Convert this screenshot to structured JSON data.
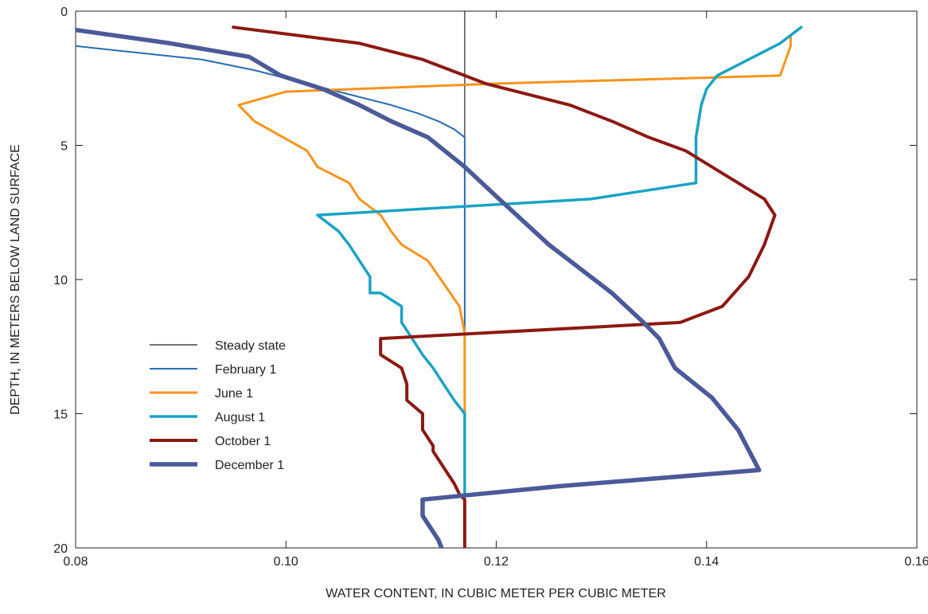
{
  "chart_data": {
    "type": "line",
    "xlabel": "WATER CONTENT, IN CUBIC METER PER CUBIC METER",
    "ylabel": "DEPTH, IN METERS BELOW LAND SURFACE",
    "xlim": [
      0.08,
      0.16
    ],
    "ylim": [
      0,
      20
    ],
    "y_inverted": true,
    "xticks": [
      "0.08",
      "0.10",
      "0.12",
      "0.14",
      "0.16"
    ],
    "yticks": [
      "0",
      "5",
      "10",
      "15",
      "20"
    ],
    "grid": false,
    "legend_position": "lower-left",
    "series": [
      {
        "name": "Steady state",
        "color": "#231f20",
        "x": [
          0.117,
          0.117
        ],
        "y": [
          0,
          20
        ]
      },
      {
        "name": "February 1",
        "color": "#2b6cb0",
        "x": [
          0.08,
          0.092,
          0.097,
          0.101,
          0.105,
          0.11,
          0.1125,
          0.1145,
          0.116,
          0.117,
          0.117,
          0.117,
          0.117,
          0.117,
          0.117
        ],
        "y": [
          1.3,
          1.8,
          2.2,
          2.6,
          3.0,
          3.5,
          3.8,
          4.1,
          4.4,
          4.7,
          6.0,
          10.0,
          15.0,
          18.0,
          20.0
        ]
      },
      {
        "name": "June 1",
        "color": "#f7941d",
        "x": [
          0.149,
          0.148,
          0.148,
          0.147,
          0.12,
          0.1,
          0.0955,
          0.097,
          0.102,
          0.103,
          0.106,
          0.107,
          0.109,
          0.11,
          0.111,
          0.1135,
          0.1165,
          0.117,
          0.117,
          0.117
        ],
        "y": [
          0.6,
          0.9,
          1.3,
          2.4,
          2.7,
          3.0,
          3.5,
          4.1,
          5.2,
          5.8,
          6.4,
          7.0,
          7.6,
          8.2,
          8.7,
          9.3,
          11.0,
          12.0,
          14.0,
          15.0
        ]
      },
      {
        "name": "August 1",
        "color": "#1aa3c3",
        "x": [
          0.149,
          0.147,
          0.144,
          0.141,
          0.14,
          0.1395,
          0.139,
          0.139,
          0.129,
          0.103,
          0.105,
          0.106,
          0.107,
          0.108,
          0.108,
          0.109,
          0.111,
          0.111,
          0.112,
          0.113,
          0.113,
          0.114,
          0.115,
          0.116,
          0.117,
          0.117,
          0.117
        ],
        "y": [
          0.6,
          1.2,
          1.8,
          2.4,
          2.9,
          3.5,
          4.7,
          6.4,
          7.0,
          7.6,
          8.2,
          8.7,
          9.3,
          9.9,
          10.5,
          10.5,
          11.0,
          11.6,
          12.2,
          12.8,
          12.8,
          13.3,
          13.9,
          14.5,
          15.0,
          17.0,
          18.0
        ]
      },
      {
        "name": "October 1",
        "color": "#8b1a12",
        "x": [
          0.095,
          0.107,
          0.113,
          0.117,
          0.119,
          0.122,
          0.127,
          0.131,
          0.1345,
          0.138,
          0.143,
          0.1455,
          0.1465,
          0.1455,
          0.144,
          0.1415,
          0.1375,
          0.109,
          0.109,
          0.111,
          0.1115,
          0.1115,
          0.113,
          0.113,
          0.114,
          0.114,
          0.115,
          0.116,
          0.1165,
          0.117,
          0.117
        ],
        "y": [
          0.6,
          1.2,
          1.8,
          2.4,
          2.7,
          3.0,
          3.5,
          4.1,
          4.7,
          5.2,
          6.4,
          7.0,
          7.6,
          8.7,
          9.9,
          11.0,
          11.6,
          12.2,
          12.8,
          13.3,
          13.9,
          14.5,
          15.0,
          15.6,
          16.2,
          16.4,
          17.0,
          17.6,
          18.0,
          18.2,
          20.0
        ]
      },
      {
        "name": "December 1",
        "color": "#4b5a98",
        "x": [
          0.08,
          0.089,
          0.0965,
          0.0995,
          0.1035,
          0.107,
          0.11,
          0.1135,
          0.117,
          0.12,
          0.125,
          0.131,
          0.134,
          0.1355,
          0.137,
          0.1405,
          0.143,
          0.145,
          0.126,
          0.113,
          0.113,
          0.114,
          0.1145,
          0.115
        ],
        "y": [
          0.7,
          1.2,
          1.7,
          2.4,
          2.9,
          3.5,
          4.1,
          4.7,
          5.8,
          6.9,
          8.7,
          10.5,
          11.6,
          12.2,
          13.3,
          14.4,
          15.6,
          17.1,
          17.7,
          18.2,
          18.8,
          19.4,
          19.7,
          20.2
        ]
      }
    ]
  }
}
